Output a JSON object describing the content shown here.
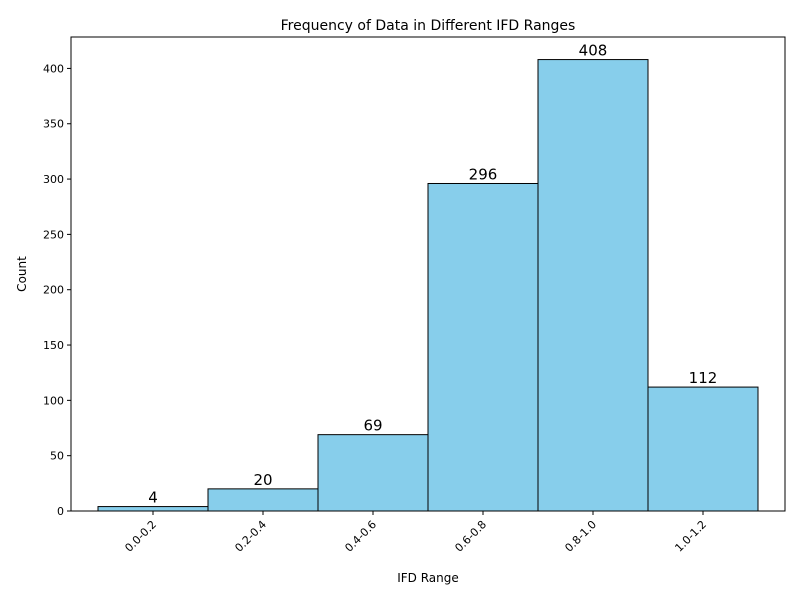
{
  "chart_data": {
    "type": "bar",
    "title": "Frequency of Data in Different IFD Ranges",
    "xlabel": "IFD Range",
    "ylabel": "Count",
    "categories": [
      "0.0-0.2",
      "0.2-0.4",
      "0.4-0.6",
      "0.6-0.8",
      "0.8-1.0",
      "1.0-1.2"
    ],
    "values": [
      4,
      20,
      69,
      296,
      408,
      112
    ],
    "ylim": [
      0,
      428.4
    ],
    "yticks": [
      0,
      50,
      100,
      150,
      200,
      250,
      300,
      350,
      400
    ],
    "bar_color": "#87ceeb",
    "edge_color": "#000000",
    "grid": false,
    "legend": "none"
  }
}
